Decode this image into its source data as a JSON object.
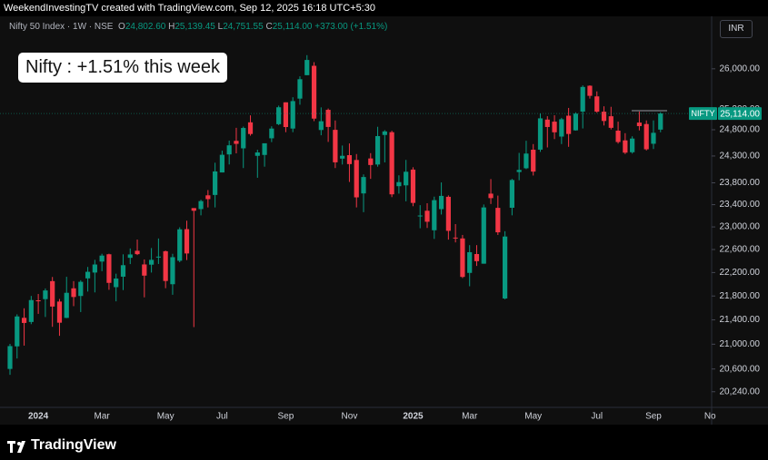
{
  "header": "WeekendInvestingTV created with TradingView.com, Sep 12, 2025 16:18 UTC+5:30",
  "footer": "TradingView",
  "chart_data": {
    "type": "candlestick",
    "legend": {
      "symbol": "Nifty 50 Index · 1W · NSE",
      "items": [
        {
          "key": "O",
          "text": "24,802.60"
        },
        {
          "key": "H",
          "text": "25,139.45"
        },
        {
          "key": "L",
          "text": "24,751.55"
        },
        {
          "key": "C",
          "text": "25,114.00"
        }
      ],
      "change": "+373.00 (+1.51%)"
    },
    "annotation": "Nifty : +1.51% this week",
    "currency": "INR",
    "price_tag": {
      "name": "NIFTY",
      "label": "25,114.00"
    },
    "up_color": "#089981",
    "down_color": "#f23645",
    "log_scale": true,
    "grid": false,
    "ylim": [
      20010,
      27080
    ],
    "yticks": [
      {
        "value": 20240,
        "label": "20,240.00"
      },
      {
        "value": 20600,
        "label": "20,600.00"
      },
      {
        "value": 21000,
        "label": "21,000.00"
      },
      {
        "value": 21400,
        "label": "21,400.00"
      },
      {
        "value": 21800,
        "label": "21,800.00"
      },
      {
        "value": 22200,
        "label": "22,200.00"
      },
      {
        "value": 22600,
        "label": "22,600.00"
      },
      {
        "value": 23000,
        "label": "23,000.00"
      },
      {
        "value": 23400,
        "label": "23,400.00"
      },
      {
        "value": 23800,
        "label": "23,800.00"
      },
      {
        "value": 24300,
        "label": "24,300.00"
      },
      {
        "value": 24800,
        "label": "24,800.00"
      },
      {
        "value": 25200,
        "label": "25,200.00"
      },
      {
        "value": 26000,
        "label": "26,000.00"
      }
    ],
    "categories": [
      null,
      null,
      null,
      null,
      "2024",
      null,
      null,
      null,
      null,
      null,
      null,
      null,
      null,
      "Mar",
      null,
      null,
      null,
      null,
      null,
      null,
      null,
      null,
      "May",
      null,
      null,
      null,
      null,
      null,
      null,
      null,
      "Jul",
      null,
      null,
      null,
      null,
      null,
      null,
      null,
      null,
      "Sep",
      null,
      null,
      null,
      null,
      null,
      null,
      null,
      null,
      "Nov",
      null,
      null,
      null,
      null,
      null,
      null,
      null,
      null,
      "2025",
      null,
      null,
      null,
      null,
      null,
      null,
      null,
      "Mar",
      null,
      null,
      null,
      null,
      null,
      null,
      null,
      null,
      "May",
      null,
      null,
      null,
      null,
      null,
      null,
      null,
      null,
      "Jul",
      null,
      null,
      null,
      null,
      null,
      null,
      null,
      "Sep",
      null,
      null,
      null,
      null,
      null,
      null,
      null,
      "No"
    ],
    "open": [
      20601,
      20965,
      21434,
      21365,
      21727,
      21747,
      22053,
      21706,
      21433,
      21930,
      21800,
      22100,
      22200,
      22390,
      22517,
      21950,
      22129,
      22455,
      22578,
      22340,
      22336,
      22475,
      22570,
      22000,
      22404,
      22960,
      23338,
      23320,
      23570,
      23577,
      23992,
      24330,
      24587,
      24445,
      24943,
      24303,
      24320,
      24636,
      24907,
      25333,
      24823,
      25406,
      25872,
      26061,
      24795,
      25186,
      24798,
      24251,
      24316,
      24225,
      23605,
      24254,
      24140,
      24700,
      24753,
      23738,
      23753,
      24045,
      23195,
      23290,
      22940,
      23319,
      23543,
      22810,
      22795,
      22194,
      22521,
      22353,
      23601,
      23342,
      21758,
      23344,
      24000,
      24070,
      24419,
      24420,
      24996,
      24956,
      24669,
      25072,
      24788,
      25152,
      25661,
      25450,
      25149,
      25061,
      24782,
      24596,
      24371,
      24938,
      24910,
      24532,
      24802.6,
      null,
      null,
      null,
      null,
      null,
      null,
      null
    ],
    "high": [
      21006,
      21492,
      21593,
      21801,
      21834,
      21928,
      22124,
      21750,
      22127,
      22053,
      22068,
      22297,
      22420,
      22526,
      22527,
      22180,
      22516,
      22619,
      22775,
      22427,
      22626,
      22794,
      22581,
      22525,
      22993,
      23110,
      23338,
      23490,
      23667,
      24174,
      24401,
      24592,
      24837,
      24861,
      25078,
      24419,
      24473,
      24867,
      25268,
      25333,
      25433,
      25849,
      26277,
      26134,
      25234,
      25212,
      24979,
      24498,
      24538,
      24337,
      23956,
      24354,
      24857,
      24792,
      24781,
      23939,
      24226,
      24089,
      23391,
      23426,
      23546,
      23807,
      23569,
      23050,
      22857,
      22677,
      22677,
      23403,
      23869,
      23565,
      22923,
      23872,
      24359,
      24589,
      24526,
      25116,
      25062,
      25080,
      25030,
      25223,
      25137,
      25668,
      25669,
      25549,
      25255,
      25245,
      24956,
      24734,
      24674,
      25153,
      24980,
      24980,
      25139.45,
      null,
      null,
      null,
      null,
      null,
      null,
      null
    ],
    "low": [
      20507,
      20769,
      20977,
      21329,
      21500,
      21448,
      21285,
      21137,
      21429,
      21629,
      21530,
      21875,
      21861,
      22224,
      21905,
      21710,
      21900,
      22346,
      22503,
      21777,
      22200,
      22348,
      21932,
      21821,
      22378,
      22417,
      21281,
      23207,
      23350,
      23350,
      23992,
      24141,
      24350,
      24074,
      24686,
      23893,
      24100,
      24563,
      24888,
      24753,
      24753,
      25286,
      25872,
      24966,
      24694,
      24567,
      24074,
      24140,
      23816,
      23350,
      23264,
      23873,
      24100,
      24180,
      23537,
      23601,
      23461,
      23372,
      22976,
      22981,
      22787,
      23222,
      22774,
      22725,
      22105,
      21965,
      22314,
      22353,
      23412,
      22857,
      21744,
      23207,
      23847,
      24054,
      23935,
      24378,
      24462,
      24621,
      24526,
      24474,
      24782,
      24825,
      25407,
      25129,
      24882,
      24806,
      24535,
      24337,
      24346,
      24787,
      24404,
      24432,
      24751.55,
      null,
      null,
      null,
      null,
      null,
      null,
      null
    ],
    "close": [
      20969,
      21457,
      21349,
      21731,
      21711,
      21894,
      21622,
      21353,
      21854,
      21783,
      22041,
      22213,
      22339,
      22494,
      22023,
      22097,
      22327,
      22514,
      22519,
      22147,
      22420,
      22476,
      22055,
      22466,
      22957,
      22531,
      23290,
      23465,
      23501,
      24011,
      24323,
      24502,
      24530,
      24834,
      24718,
      24367,
      24541,
      24823,
      25236,
      24852,
      25357,
      25791,
      26179,
      25015,
      24964,
      24854,
      24181,
      24304,
      24148,
      23533,
      23907,
      24131,
      24678,
      24768,
      23588,
      23813,
      24005,
      23432,
      23204,
      23092,
      23482,
      23560,
      22930,
      22796,
      22125,
      22553,
      22397,
      23350,
      23519,
      22904,
      22829,
      23852,
      24039,
      24346,
      24008,
      25020,
      24853,
      24751,
      25003,
      24719,
      25112,
      25637,
      25461,
      25150,
      24969,
      24837,
      24565,
      24363,
      24631,
      24870,
      24427,
      24741,
      25114,
      null,
      null,
      null,
      null,
      null,
      null,
      null
    ]
  }
}
